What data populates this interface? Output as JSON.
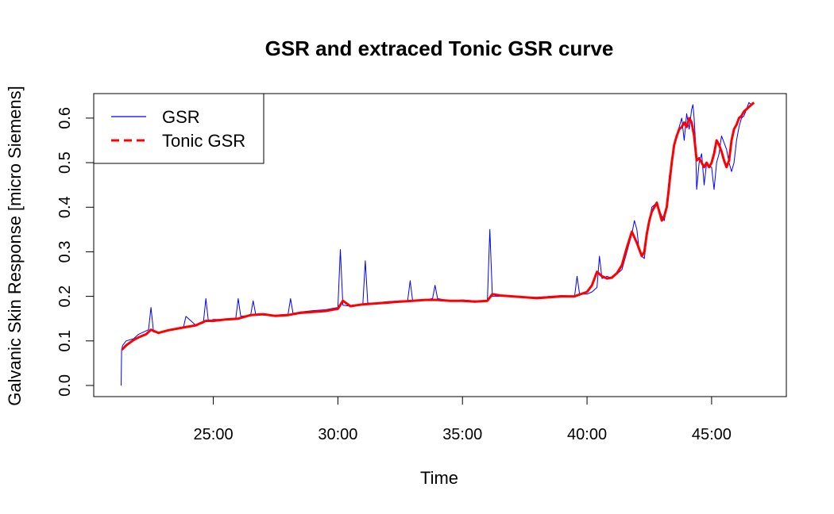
{
  "chart_data": {
    "type": "line",
    "title": "GSR and extraced Tonic GSR curve",
    "xlabel": "Time",
    "ylabel": "Galvanic Skin Response [micro Siemens]",
    "x_unit": "minutes",
    "xlim": [
      20.2,
      48.0
    ],
    "ylim": [
      -0.025,
      0.655
    ],
    "x_ticks": [
      {
        "value": 25,
        "label": "25:00"
      },
      {
        "value": 30,
        "label": "30:00"
      },
      {
        "value": 35,
        "label": "35:00"
      },
      {
        "value": 40,
        "label": "40:00"
      },
      {
        "value": 45,
        "label": "45:00"
      }
    ],
    "y_ticks": [
      {
        "value": 0.0,
        "label": "0.0"
      },
      {
        "value": 0.1,
        "label": "0.1"
      },
      {
        "value": 0.2,
        "label": "0.2"
      },
      {
        "value": 0.3,
        "label": "0.3"
      },
      {
        "value": 0.4,
        "label": "0.4"
      },
      {
        "value": 0.5,
        "label": "0.5"
      },
      {
        "value": 0.6,
        "label": "0.6"
      }
    ],
    "legend_position": "top-left",
    "series": [
      {
        "name": "GSR",
        "color": "#0000ff",
        "style": "solid",
        "x": [
          21.3,
          21.32,
          21.34,
          21.36,
          21.5,
          21.8,
          22.0,
          22.4,
          22.5,
          22.6,
          22.8,
          23.2,
          23.8,
          23.9,
          24.3,
          24.6,
          24.7,
          24.8,
          25.0,
          25.5,
          25.9,
          26.0,
          26.1,
          26.5,
          26.6,
          26.7,
          27.0,
          27.5,
          28.0,
          28.1,
          28.2,
          28.5,
          29.0,
          29.5,
          30.0,
          30.1,
          30.2,
          30.5,
          31.0,
          31.1,
          31.2,
          31.5,
          32.0,
          32.5,
          32.8,
          32.9,
          33.0,
          33.5,
          33.8,
          33.9,
          34.0,
          34.5,
          35.0,
          35.5,
          36.0,
          36.1,
          36.2,
          36.5,
          37.0,
          37.5,
          38.0,
          38.5,
          39.0,
          39.5,
          39.6,
          39.7,
          40.0,
          40.2,
          40.4,
          40.5,
          40.6,
          40.8,
          41.0,
          41.2,
          41.4,
          41.6,
          41.8,
          41.9,
          42.0,
          42.1,
          42.2,
          42.3,
          42.4,
          42.5,
          42.6,
          42.8,
          43.0,
          43.1,
          43.2,
          43.3,
          43.4,
          43.5,
          43.6,
          43.7,
          43.8,
          43.9,
          44.0,
          44.1,
          44.2,
          44.25,
          44.3,
          44.35,
          44.4,
          44.5,
          44.6,
          44.7,
          44.8,
          44.9,
          45.0,
          45.1,
          45.2,
          45.3,
          45.4,
          45.5,
          45.6,
          45.7,
          45.8,
          45.9,
          46.0,
          46.1,
          46.2,
          46.3,
          46.4,
          46.5,
          46.6,
          46.7
        ],
        "y": [
          0.0,
          0.08,
          0.085,
          0.09,
          0.1,
          0.105,
          0.115,
          0.125,
          0.175,
          0.12,
          0.118,
          0.125,
          0.13,
          0.155,
          0.135,
          0.14,
          0.195,
          0.145,
          0.148,
          0.148,
          0.15,
          0.195,
          0.155,
          0.158,
          0.19,
          0.16,
          0.158,
          0.158,
          0.16,
          0.195,
          0.162,
          0.165,
          0.168,
          0.17,
          0.175,
          0.305,
          0.18,
          0.178,
          0.182,
          0.28,
          0.185,
          0.185,
          0.188,
          0.19,
          0.19,
          0.235,
          0.19,
          0.192,
          0.195,
          0.225,
          0.195,
          0.19,
          0.192,
          0.19,
          0.19,
          0.35,
          0.2,
          0.2,
          0.2,
          0.198,
          0.198,
          0.2,
          0.202,
          0.2,
          0.245,
          0.205,
          0.205,
          0.21,
          0.22,
          0.29,
          0.24,
          0.245,
          0.24,
          0.25,
          0.26,
          0.3,
          0.34,
          0.37,
          0.35,
          0.3,
          0.29,
          0.285,
          0.33,
          0.37,
          0.4,
          0.41,
          0.38,
          0.37,
          0.4,
          0.47,
          0.5,
          0.54,
          0.56,
          0.58,
          0.6,
          0.55,
          0.61,
          0.575,
          0.62,
          0.63,
          0.6,
          0.55,
          0.44,
          0.5,
          0.52,
          0.45,
          0.5,
          0.49,
          0.49,
          0.44,
          0.5,
          0.52,
          0.56,
          0.545,
          0.53,
          0.5,
          0.48,
          0.5,
          0.55,
          0.58,
          0.6,
          0.605,
          0.62,
          0.635,
          0.63,
          0.635
        ]
      },
      {
        "name": "Tonic GSR",
        "color": "#ff0000",
        "style": "dashed",
        "x": [
          21.33,
          21.5,
          21.8,
          22.0,
          22.3,
          22.5,
          22.8,
          23.2,
          23.8,
          24.3,
          24.7,
          25.0,
          25.5,
          26.0,
          26.5,
          27.0,
          27.5,
          28.0,
          28.5,
          29.0,
          29.5,
          30.0,
          30.2,
          30.5,
          31.0,
          31.5,
          32.0,
          32.5,
          33.0,
          33.5,
          34.0,
          34.5,
          35.0,
          35.5,
          36.0,
          36.2,
          36.5,
          37.0,
          37.5,
          38.0,
          38.5,
          39.0,
          39.5,
          40.0,
          40.2,
          40.4,
          40.6,
          40.8,
          41.0,
          41.2,
          41.4,
          41.6,
          41.8,
          42.0,
          42.2,
          42.3,
          42.4,
          42.5,
          42.6,
          42.8,
          43.0,
          43.1,
          43.2,
          43.3,
          43.4,
          43.5,
          43.6,
          43.7,
          43.8,
          43.9,
          44.0,
          44.1,
          44.2,
          44.3,
          44.4,
          44.5,
          44.6,
          44.7,
          44.8,
          44.9,
          45.0,
          45.1,
          45.2,
          45.3,
          45.4,
          45.5,
          45.6,
          45.7,
          45.8,
          45.9,
          46.0,
          46.1,
          46.2,
          46.3,
          46.4,
          46.5,
          46.6,
          46.7
        ],
        "y": [
          0.08,
          0.09,
          0.102,
          0.108,
          0.115,
          0.125,
          0.118,
          0.124,
          0.13,
          0.135,
          0.145,
          0.145,
          0.148,
          0.15,
          0.158,
          0.16,
          0.156,
          0.158,
          0.163,
          0.165,
          0.167,
          0.172,
          0.19,
          0.178,
          0.182,
          0.184,
          0.186,
          0.188,
          0.19,
          0.192,
          0.192,
          0.19,
          0.19,
          0.188,
          0.19,
          0.205,
          0.202,
          0.2,
          0.198,
          0.196,
          0.198,
          0.2,
          0.2,
          0.21,
          0.225,
          0.255,
          0.245,
          0.24,
          0.242,
          0.252,
          0.27,
          0.31,
          0.345,
          0.32,
          0.29,
          0.3,
          0.34,
          0.37,
          0.39,
          0.41,
          0.37,
          0.38,
          0.4,
          0.45,
          0.5,
          0.54,
          0.56,
          0.575,
          0.58,
          0.59,
          0.58,
          0.6,
          0.59,
          0.56,
          0.505,
          0.51,
          0.5,
          0.49,
          0.5,
          0.49,
          0.5,
          0.52,
          0.55,
          0.54,
          0.525,
          0.505,
          0.49,
          0.505,
          0.55,
          0.575,
          0.585,
          0.6,
          0.605,
          0.615,
          0.62,
          0.625,
          0.63,
          0.635
        ]
      }
    ]
  }
}
